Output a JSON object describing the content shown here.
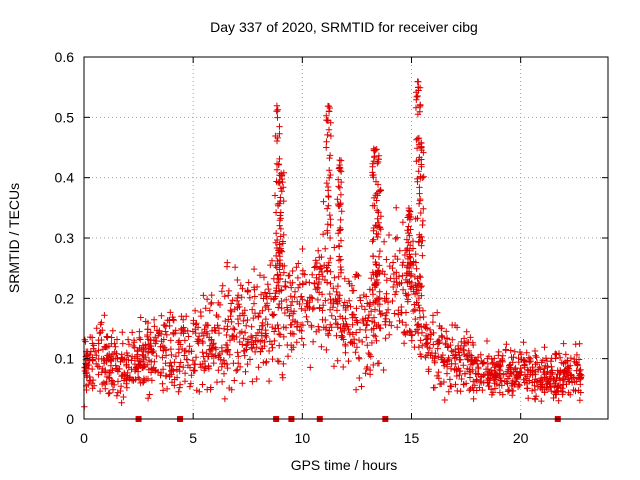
{
  "chart_data": {
    "type": "scatter",
    "title": "Day 337 of 2020, SRMTID for receiver cibg",
    "xlabel": "GPS time / hours",
    "ylabel": "SRMTID / TECUs",
    "xlim": [
      0,
      24
    ],
    "ylim": [
      0,
      0.6
    ],
    "x_ticks": [
      0,
      5,
      10,
      15,
      20
    ],
    "x_tick_labels": [
      "0",
      "5",
      "10",
      "15",
      "20"
    ],
    "y_ticks": [
      0,
      0.1,
      0.2,
      0.3,
      0.4,
      0.5,
      0.6
    ],
    "y_tick_labels": [
      "0",
      "0.1",
      "0.2",
      "0.3",
      "0.4",
      "0.5",
      "0.6"
    ],
    "grid": true,
    "marker": "+",
    "color": "#e00000",
    "baseline_markers": {
      "marker": "square",
      "y": 0,
      "x": [
        2.5,
        4.4,
        8.8,
        9.5,
        10.8,
        13.8,
        21.7
      ]
    },
    "envelope": {
      "description": "typical SRMTID level vs GPS hour (points scatter around this)",
      "x": [
        0,
        1,
        2,
        3,
        4,
        5,
        6,
        7,
        8,
        8.8,
        9.5,
        10,
        10.5,
        11,
        11.5,
        12,
        13,
        13.5,
        14,
        14.5,
        15,
        15.5,
        16,
        17,
        18,
        19,
        20,
        21,
        22,
        22.8
      ],
      "y": [
        0.09,
        0.1,
        0.08,
        0.1,
        0.11,
        0.12,
        0.13,
        0.15,
        0.15,
        0.2,
        0.17,
        0.2,
        0.19,
        0.22,
        0.19,
        0.17,
        0.14,
        0.18,
        0.22,
        0.23,
        0.2,
        0.14,
        0.12,
        0.1,
        0.08,
        0.08,
        0.08,
        0.07,
        0.07,
        0.08
      ],
      "spread": [
        0.04,
        0.05,
        0.04,
        0.05,
        0.05,
        0.05,
        0.06,
        0.07,
        0.07,
        0.09,
        0.06,
        0.07,
        0.07,
        0.08,
        0.07,
        0.07,
        0.06,
        0.07,
        0.08,
        0.08,
        0.08,
        0.06,
        0.05,
        0.04,
        0.03,
        0.03,
        0.03,
        0.03,
        0.03,
        0.03
      ]
    },
    "spikes": [
      {
        "x": 8.85,
        "peak": 0.52
      },
      {
        "x": 9.05,
        "peak": 0.41
      },
      {
        "x": 11.2,
        "peak": 0.52
      },
      {
        "x": 11.7,
        "peak": 0.43
      },
      {
        "x": 13.3,
        "peak": 0.45
      },
      {
        "x": 13.5,
        "peak": 0.44
      },
      {
        "x": 14.9,
        "peak": 0.35
      },
      {
        "x": 15.3,
        "peak": 0.56
      },
      {
        "x": 15.45,
        "peak": 0.46
      }
    ]
  }
}
